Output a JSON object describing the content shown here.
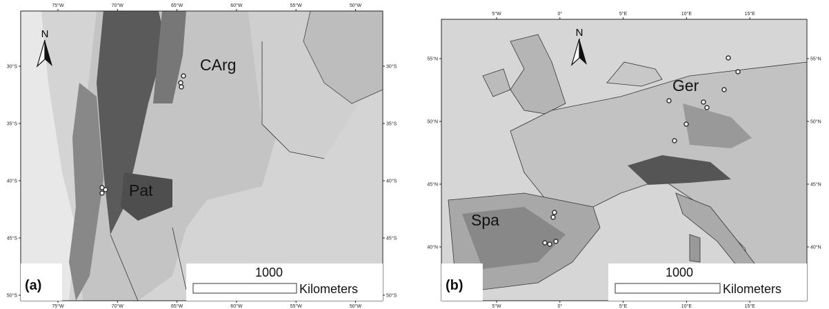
{
  "panels": [
    {
      "label": "(a)",
      "north": "N",
      "regions": [
        "CArg",
        "Pat"
      ],
      "lon_labels": [
        "75°W",
        "70°W",
        "65°W",
        "60°W",
        "55°W",
        "50°W"
      ],
      "lat_labels": [
        "30°S",
        "35°S",
        "40°S",
        "45°S",
        "50°S"
      ],
      "scale": {
        "distance": "1000",
        "unit": "Kilometers"
      }
    },
    {
      "label": "(b)",
      "north": "N",
      "regions": [
        "Spa",
        "Ger"
      ],
      "lon_labels": [
        "5°W",
        "0°",
        "5°E",
        "10°E",
        "15°E"
      ],
      "lat_labels": [
        "55°N",
        "50°N",
        "45°N",
        "40°N"
      ],
      "scale": {
        "distance": "1000",
        "unit": "Kilometers"
      }
    }
  ]
}
